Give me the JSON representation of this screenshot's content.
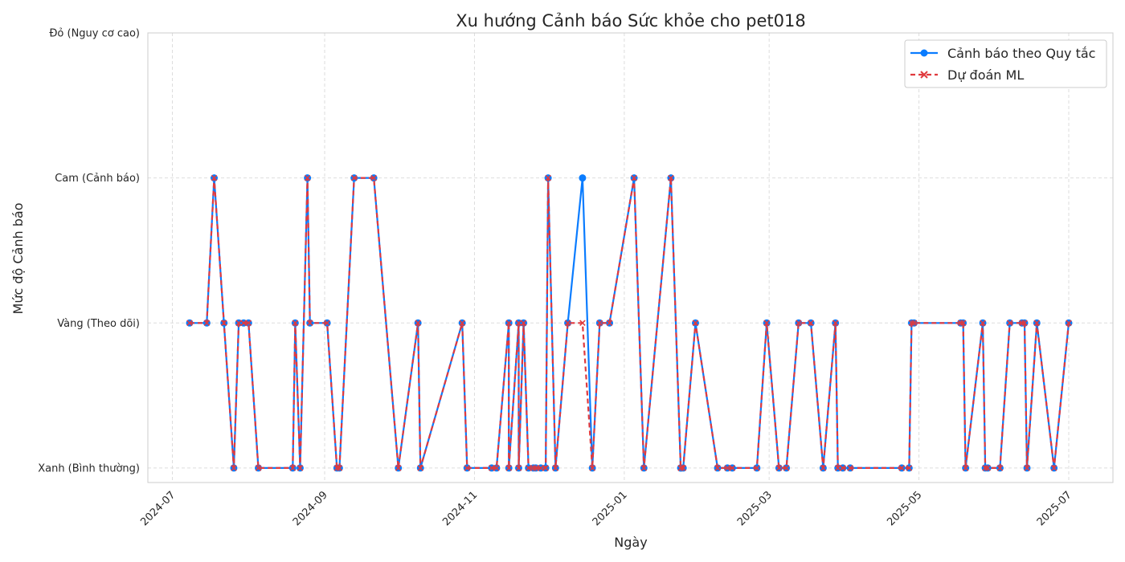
{
  "chart_data": {
    "type": "line",
    "title": "Xu hướng Cảnh báo Sức khỏe cho pet018",
    "xlabel": "Ngày",
    "ylabel": "Mức độ Cảnh báo",
    "x_ticks": [
      "2024-07",
      "2024-09",
      "2024-11",
      "2025-01",
      "2025-03",
      "2025-05",
      "2025-07"
    ],
    "y_ticks": [
      "Xanh (Bình thường)",
      "Vàng (Theo dõi)",
      "Cam (Cảnh báo)",
      "Đỏ (Nguy cơ cao)"
    ],
    "ylim": [
      -0.1,
      3
    ],
    "xlim": [
      "2024-06-21",
      "2025-07-19"
    ],
    "grid": true,
    "legend_position": "top-right",
    "colors": {
      "rule": "#0a7cff",
      "ml": "#e03a3e"
    },
    "x": [
      "2024-07-08",
      "2024-07-15",
      "2024-07-18",
      "2024-07-22",
      "2024-07-26",
      "2024-07-28",
      "2024-07-30",
      "2024-08-01",
      "2024-08-05",
      "2024-08-19",
      "2024-08-20",
      "2024-08-22",
      "2024-08-25",
      "2024-08-26",
      "2024-09-02",
      "2024-09-06",
      "2024-09-07",
      "2024-09-13",
      "2024-09-21",
      "2024-10-01",
      "2024-10-09",
      "2024-10-10",
      "2024-10-27",
      "2024-10-29",
      "2024-11-08",
      "2024-11-10",
      "2024-11-15",
      "2024-11-15",
      "2024-11-19",
      "2024-11-19",
      "2024-11-21",
      "2024-11-23",
      "2024-11-25",
      "2024-11-26",
      "2024-11-28",
      "2024-11-30",
      "2024-12-01",
      "2024-12-04",
      "2024-12-09",
      "2024-12-15",
      "2024-12-19",
      "2024-12-22",
      "2024-12-26",
      "2025-01-05",
      "2025-01-09",
      "2025-01-20",
      "2025-01-24",
      "2025-01-24",
      "2025-01-25",
      "2025-01-30",
      "2025-02-08",
      "2025-02-12",
      "2025-02-14",
      "2025-02-24",
      "2025-02-28",
      "2025-03-05",
      "2025-03-08",
      "2025-03-13",
      "2025-03-18",
      "2025-03-23",
      "2025-03-28",
      "2025-03-29",
      "2025-03-31",
      "2025-04-03",
      "2025-04-24",
      "2025-04-27",
      "2025-04-28",
      "2025-04-29",
      "2025-05-18",
      "2025-05-19",
      "2025-05-20",
      "2025-05-27",
      "2025-05-28",
      "2025-05-29",
      "2025-06-03",
      "2025-06-07",
      "2025-06-12",
      "2025-06-13",
      "2025-06-14",
      "2025-06-18",
      "2025-06-25",
      "2025-07-01"
    ],
    "series": [
      {
        "name": "Cảnh báo theo Quy tắc",
        "marker": "circle",
        "values": [
          1,
          1,
          2,
          1,
          0,
          1,
          1,
          1,
          0,
          0,
          1,
          0,
          2,
          1,
          1,
          0,
          0,
          2,
          2,
          0,
          1,
          0,
          1,
          0,
          0,
          0,
          1,
          0,
          1,
          0,
          1,
          0,
          0,
          0,
          0,
          0,
          2,
          0,
          1,
          2,
          0,
          1,
          1,
          2,
          0,
          2,
          0,
          0,
          0,
          1,
          0,
          0,
          0,
          0,
          1,
          0,
          0,
          1,
          1,
          0,
          1,
          0,
          0,
          0,
          0,
          0,
          1,
          1,
          1,
          1,
          0,
          1,
          0,
          0,
          0,
          1,
          1,
          1,
          0,
          1,
          0,
          1
        ]
      },
      {
        "name": "Dự đoán ML",
        "marker": "x",
        "dashed": true,
        "values": [
          1,
          1,
          2,
          1,
          0,
          1,
          1,
          1,
          0,
          0,
          1,
          0,
          2,
          1,
          1,
          0,
          0,
          2,
          2,
          0,
          1,
          0,
          1,
          0,
          0,
          0,
          1,
          0,
          1,
          0,
          1,
          0,
          0,
          0,
          0,
          0,
          2,
          0,
          1,
          1,
          0,
          1,
          1,
          2,
          0,
          2,
          0,
          0,
          0,
          1,
          0,
          0,
          0,
          0,
          1,
          0,
          0,
          1,
          1,
          0,
          1,
          0,
          0,
          0,
          0,
          0,
          1,
          1,
          1,
          1,
          0,
          1,
          0,
          0,
          0,
          1,
          1,
          1,
          0,
          1,
          0,
          1
        ]
      }
    ]
  }
}
